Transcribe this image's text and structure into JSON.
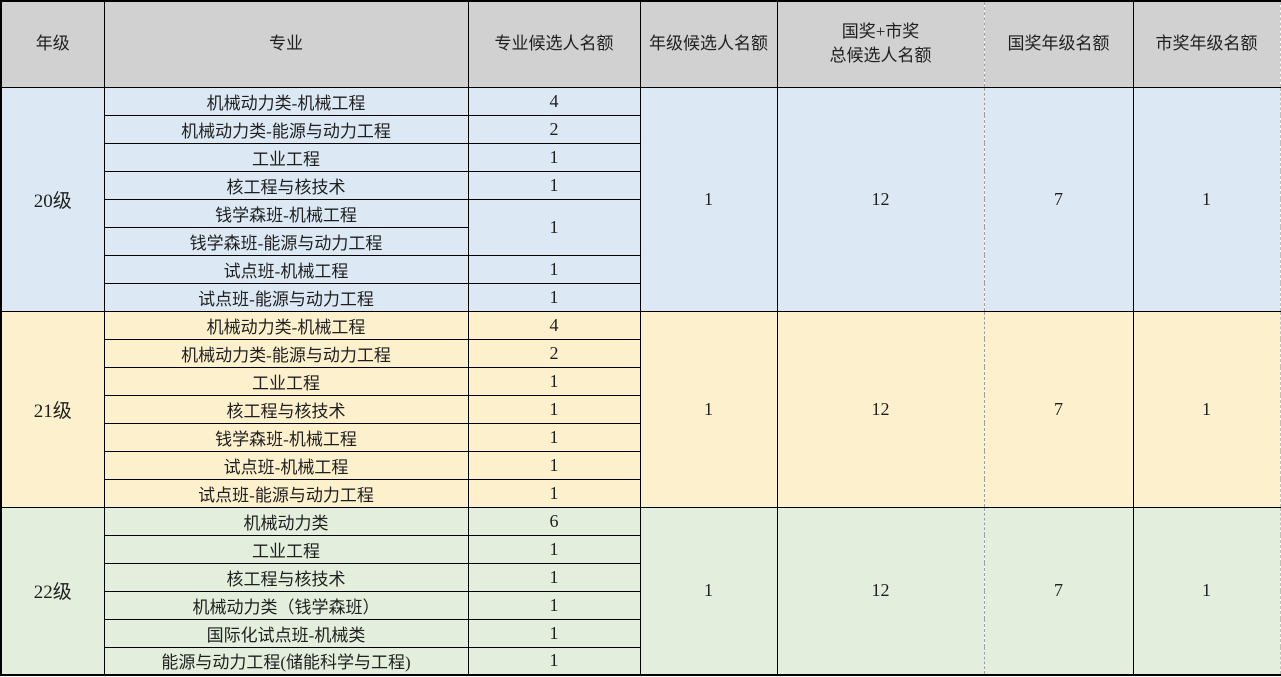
{
  "colors": {
    "header_bg": "#d1d1d1",
    "grade20_bg": "#dce9f4",
    "grade21_bg": "#fdf0cd",
    "grade22_bg": "#e3eedd",
    "grid_border": "#000000",
    "page_break_dash": "#9f9f9f",
    "text": "#1f1f1f"
  },
  "table": {
    "columns": [
      {
        "key": "grade",
        "label": "年级"
      },
      {
        "key": "major",
        "label": "专业"
      },
      {
        "key": "major_quota",
        "label": "专业候选人名额"
      },
      {
        "key": "grade_quota",
        "label": "年级候选人名额"
      },
      {
        "key": "total_quota",
        "label": "国奖+市奖总候选人名额",
        "lines": [
          "国奖+市奖",
          "总候选人名额"
        ]
      },
      {
        "key": "national_quota",
        "label": "国奖年级名额"
      },
      {
        "key": "municipal_quota",
        "label": "市奖年级名额"
      }
    ],
    "groups": [
      {
        "grade": "20级",
        "bg": "#dce9f4",
        "rows": [
          {
            "major": "机械动力类-机械工程",
            "quota": "4"
          },
          {
            "major": "机械动力类-能源与动力工程",
            "quota": "2"
          },
          {
            "major": "工业工程",
            "quota": "1"
          },
          {
            "major": "核工程与核技术",
            "quota": "1"
          },
          {
            "major": "钱学森班-机械工程",
            "quota": "1",
            "quota_rowspan": 2
          },
          {
            "major": "钱学森班-能源与动力工程",
            "quota": null
          },
          {
            "major": "试点班-机械工程",
            "quota": "1"
          },
          {
            "major": "试点班-能源与动力工程",
            "quota": "1"
          }
        ],
        "grade_quota": "1",
        "total_quota": "12",
        "national_quota": "7",
        "municipal_quota": "1"
      },
      {
        "grade": "21级",
        "bg": "#fdf0cd",
        "rows": [
          {
            "major": "机械动力类-机械工程",
            "quota": "4"
          },
          {
            "major": "机械动力类-能源与动力工程",
            "quota": "2"
          },
          {
            "major": "工业工程",
            "quota": "1"
          },
          {
            "major": "核工程与核技术",
            "quota": "1"
          },
          {
            "major": "钱学森班-机械工程",
            "quota": "1"
          },
          {
            "major": "试点班-机械工程",
            "quota": "1"
          },
          {
            "major": "试点班-能源与动力工程",
            "quota": "1"
          }
        ],
        "grade_quota": "1",
        "total_quota": "12",
        "national_quota": "7",
        "municipal_quota": "1"
      },
      {
        "grade": "22级",
        "bg": "#e3eedd",
        "rows": [
          {
            "major": "机械动力类",
            "quota": "6"
          },
          {
            "major": "工业工程",
            "quota": "1"
          },
          {
            "major": "核工程与核技术",
            "quota": "1"
          },
          {
            "major": "机械动力类（钱学森班）",
            "quota": "1"
          },
          {
            "major": "国际化试点班-机械类",
            "quota": "1"
          },
          {
            "major": "能源与动力工程(储能科学与工程)",
            "quota": "1"
          }
        ],
        "grade_quota": "1",
        "total_quota": "12",
        "national_quota": "7",
        "municipal_quota": "1"
      }
    ]
  }
}
